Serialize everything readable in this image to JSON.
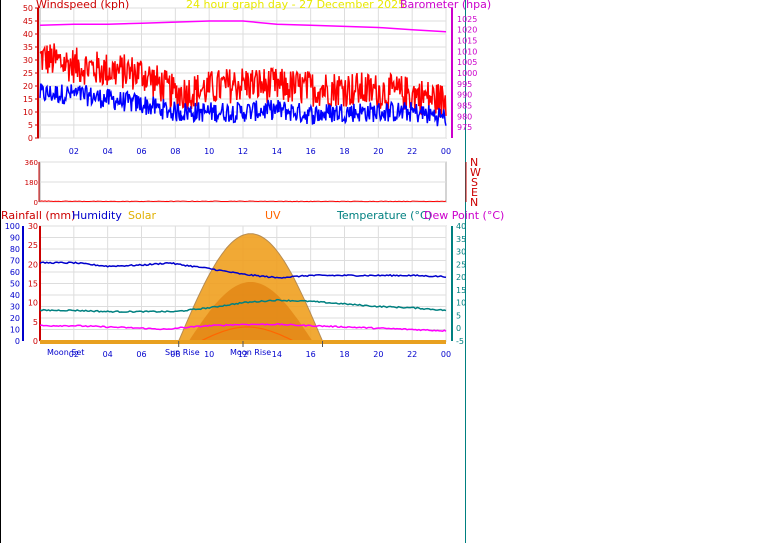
{
  "page": {
    "title": "24 hour graph day - 27 December 2025"
  },
  "colors": {
    "background": "#ffffff",
    "plot_bg": "#ffffff",
    "grid": "#dddddd",
    "wind_gust": "#ff0000",
    "wind_avg": "#0000ff",
    "barometer": "#ff00ff",
    "direction": "#ff0000",
    "humidity": "#0000cc",
    "temperature": "#008080",
    "dewpoint": "#ff00ff",
    "solar": "#e0a000",
    "uv": "#ff6600",
    "rainfall": "#cc0000",
    "axis_blue": "#0000cc",
    "title_yellow": "#e8e800"
  },
  "labels": {
    "windspeed": "Windspeed (kph)",
    "barometer": "Barometer (hpa)",
    "rainfall": "Rainfall (mm)",
    "humidity": "Humidity",
    "solar": "Solar",
    "uv": "UV",
    "temperature": "Temperature (°C)",
    "dewpoint": "Dew Point (°C)",
    "compass": [
      "N",
      "W",
      "S",
      "E",
      "N"
    ],
    "moon_set": "Moon Set",
    "sun_rise": "Sun Rise",
    "moon_rise": "Moon Rise"
  },
  "chart_data": [
    {
      "type": "line",
      "title": "24 hour graph day - 27 December 2025",
      "xlabel": "",
      "ylabel": "Windspeed (kph)",
      "y2label": "Barometer (hpa)",
      "x_ticks": [
        "02",
        "04",
        "06",
        "08",
        "10",
        "12",
        "14",
        "16",
        "18",
        "20",
        "22",
        "00"
      ],
      "ylim": [
        0,
        50
      ],
      "y_ticks": [
        0,
        5,
        10,
        15,
        20,
        25,
        30,
        35,
        40,
        45,
        50
      ],
      "y2lim": [
        970,
        1030
      ],
      "y2_ticks": [
        975,
        980,
        985,
        990,
        995,
        1000,
        1005,
        1010,
        1015,
        1020,
        1025
      ],
      "grid": true,
      "hours": [
        0,
        2,
        4,
        6,
        8,
        10,
        12,
        14,
        16,
        18,
        20,
        22,
        24
      ],
      "series": [
        {
          "name": "Windspeed (kph)",
          "role": "gust",
          "values": [
            31,
            28,
            26,
            25,
            17,
            19,
            21,
            20,
            19,
            19,
            18,
            17,
            14
          ]
        },
        {
          "name": "Windspeed (kph)",
          "role": "average",
          "values": [
            17,
            17,
            15,
            13,
            10,
            10,
            10,
            11,
            9,
            10,
            10,
            10,
            8
          ]
        },
        {
          "name": "Barometer (hpa)",
          "role": "pressure",
          "values": [
            1022,
            1022.5,
            1022.5,
            1023,
            1023.5,
            1024,
            1024,
            1022.5,
            1022,
            1021.5,
            1021,
            1020,
            1019
          ]
        }
      ]
    },
    {
      "type": "line",
      "title": "",
      "ylabel": "",
      "ylim": [
        0,
        360
      ],
      "y_ticks": [
        0,
        180,
        360
      ],
      "hours": [
        0,
        4,
        8,
        12,
        16,
        20,
        24
      ],
      "series": [
        {
          "name": "",
          "values": [
            8,
            5,
            6,
            7,
            5,
            6,
            6
          ]
        }
      ]
    },
    {
      "type": "line",
      "title": "",
      "x_ticks": [
        "02",
        "04",
        "06",
        "08",
        "10",
        "12",
        "14",
        "16",
        "18",
        "20",
        "22",
        "00"
      ],
      "y_left_ticks": [
        0,
        10,
        20,
        30,
        40,
        50,
        60,
        70,
        80,
        90,
        100
      ],
      "y_left_lim": [
        0,
        100
      ],
      "y_rain_ticks": [
        0,
        5,
        10,
        15,
        20,
        25,
        30
      ],
      "y_rain_lim": [
        0,
        30
      ],
      "y_right_ticks": [
        -5,
        0,
        5,
        10,
        15,
        20,
        25,
        30,
        35,
        40
      ],
      "y_right_lim": [
        -5,
        40
      ],
      "grid": true,
      "hours": [
        0,
        2,
        4,
        6,
        7.7,
        8,
        10,
        12,
        14,
        16,
        18,
        20,
        22,
        24
      ],
      "series": [
        {
          "name": "Humidity",
          "values": [
            68,
            68,
            65,
            66,
            68,
            67,
            63,
            58,
            55,
            57,
            57,
            57,
            57,
            56
          ]
        },
        {
          "name": "Temperature (°C)",
          "values": [
            7,
            7,
            6.5,
            6.5,
            6.5,
            6.5,
            8,
            10,
            11,
            10.5,
            9.5,
            8.5,
            8,
            7
          ]
        },
        {
          "name": "Dew Point (°C)",
          "values": [
            1,
            1,
            0.5,
            0,
            -0.5,
            0,
            1,
            1.5,
            1.5,
            1,
            0.5,
            0,
            -0.5,
            -1
          ]
        }
      ],
      "solar": {
        "name": "Solar",
        "start_hour": 8.2,
        "end_hour": 16.7,
        "peak": 28
      },
      "uv": {
        "name": "UV",
        "start_hour": 9.5,
        "end_hour": 15,
        "peak": 2
      },
      "markers": [
        {
          "label": "Moon Set",
          "hour": 0
        },
        {
          "label": "Sun Rise",
          "hour": 8.2
        },
        {
          "label": "Moon Rise",
          "hour": 12
        }
      ]
    }
  ]
}
